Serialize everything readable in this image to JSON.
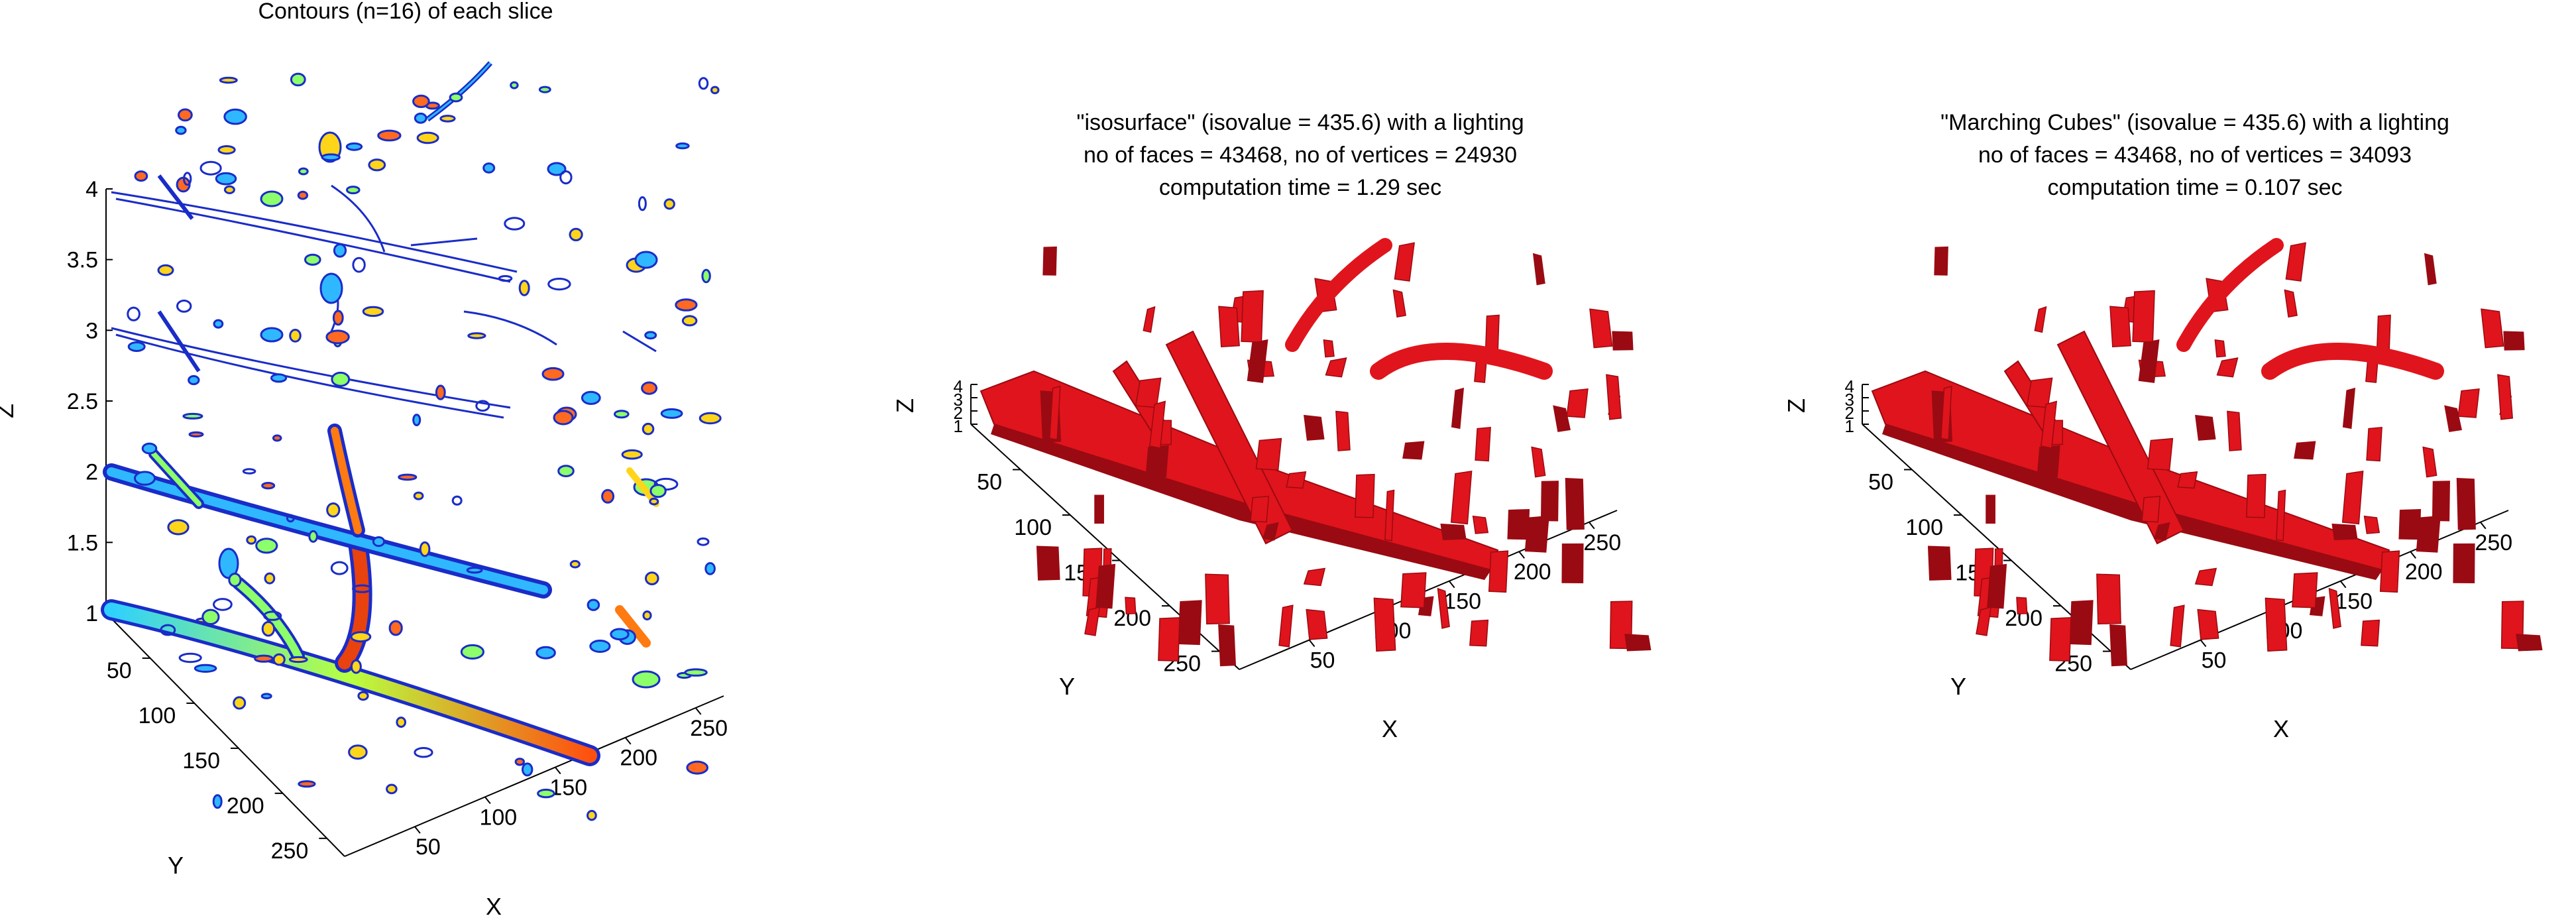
{
  "chart_data": [
    {
      "type": "contour3d",
      "title": "Contours (n=16) of each slice",
      "xlabel": "X",
      "ylabel": "Y",
      "zlabel": "Z",
      "x_ticks": [
        "50",
        "100",
        "150",
        "200",
        "250"
      ],
      "y_ticks": [
        "50",
        "100",
        "150",
        "200",
        "250"
      ],
      "z_ticks": [
        "1",
        "1.5",
        "2",
        "2.5",
        "3",
        "3.5",
        "4"
      ],
      "slices": [
        1,
        2,
        3,
        4
      ],
      "colormap": "jet"
    },
    {
      "type": "surface3d",
      "title_lines": [
        "\"isosurface\" (isovalue = 435.6) with a lighting",
        "no of faces = 43468, no of vertices = 24930",
        "computation time = 1.29 sec"
      ],
      "isovalue": 435.6,
      "faces": 43468,
      "vertices": 24930,
      "time_sec": 1.29,
      "xlabel": "X",
      "ylabel": "Y",
      "zlabel": "Z",
      "x_ticks": [
        "50",
        "100",
        "150",
        "200",
        "250"
      ],
      "y_ticks": [
        "50",
        "100",
        "150",
        "200",
        "250"
      ],
      "z_ticks": [
        "1",
        "2",
        "3",
        "4"
      ],
      "color": "#e0141c"
    },
    {
      "type": "surface3d",
      "title_lines": [
        "\"Marching Cubes\" (isovalue = 435.6) with a lighting",
        "no of faces = 43468, no of vertices = 34093",
        "computation time = 0.107 sec"
      ],
      "isovalue": 435.6,
      "faces": 43468,
      "vertices": 34093,
      "time_sec": 0.107,
      "xlabel": "X",
      "ylabel": "Y",
      "zlabel": "Z",
      "x_ticks": [
        "50",
        "100",
        "150",
        "200",
        "250"
      ],
      "y_ticks": [
        "50",
        "100",
        "150",
        "200",
        "250"
      ],
      "z_ticks": [
        "1",
        "2",
        "3",
        "4"
      ],
      "color": "#e0141c"
    }
  ]
}
